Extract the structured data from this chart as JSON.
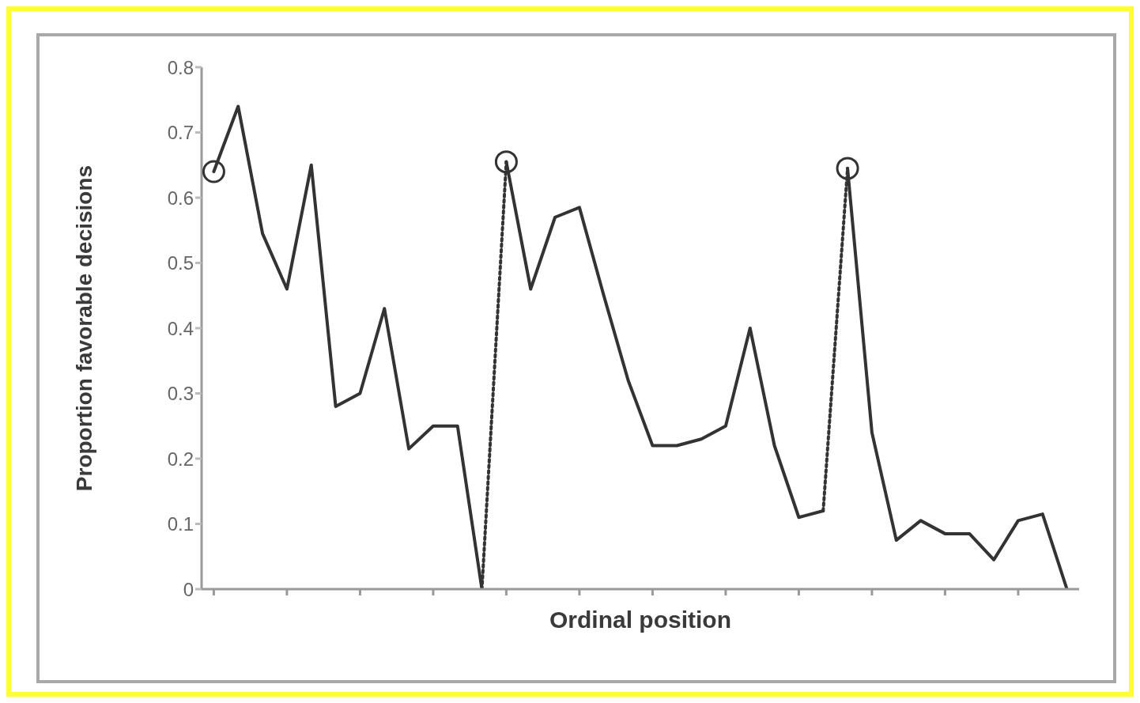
{
  "chart_data": {
    "type": "line",
    "xlabel": "Ordinal position",
    "ylabel": "Proportion favorable decisions",
    "categories": [
      null,
      null,
      null,
      null,
      null,
      null,
      null,
      null,
      null,
      null,
      null,
      null,
      null,
      null,
      null,
      null,
      null,
      null,
      null,
      null,
      null,
      null,
      null,
      null,
      null,
      null,
      null,
      null,
      null,
      null,
      null,
      null,
      null,
      null,
      null,
      null
    ],
    "ylim": [
      0,
      0.8
    ],
    "yticks": [
      0,
      0.1,
      0.2,
      0.3,
      0.4,
      0.5,
      0.6,
      0.7,
      0.8
    ],
    "grid": false,
    "marker": "none",
    "line_style": "solid",
    "series": [
      {
        "color": "#333333",
        "values": [
          0.64,
          0.74,
          0.545,
          0.46,
          0.65,
          0.28,
          0.3,
          0.43,
          0.215,
          0.25,
          0.25,
          0,
          null,
          null,
          null,
          null,
          null,
          null,
          null,
          null,
          null,
          null,
          null,
          null,
          null,
          null,
          0.645,
          0.24,
          0.075,
          0.105,
          0.085,
          0.085,
          0.045,
          0.105,
          0.115,
          0
        ]
      },
      {
        "color": "#333333",
        "values": [
          null,
          null,
          null,
          null,
          null,
          null,
          null,
          null,
          null,
          null,
          null,
          null,
          0.655,
          0.46,
          0.57,
          0.585,
          0.45,
          0.32,
          0.22,
          0.22,
          0.23,
          0.25,
          0.4,
          0.22,
          0.11,
          0.12,
          null,
          null,
          null,
          null,
          null,
          null,
          null,
          null,
          null,
          null
        ]
      },
      {
        "color": "#333333",
        "line_style": "dotted",
        "values": [
          null,
          null,
          null,
          null,
          null,
          null,
          null,
          null,
          null,
          null,
          null,
          0,
          0.655,
          null,
          null,
          null,
          null,
          null,
          null,
          null,
          null,
          null,
          null,
          null,
          null,
          0.12,
          0.645,
          null,
          null,
          null,
          null,
          null,
          null,
          null,
          null,
          null
        ]
      },
      {
        "type": "scatter",
        "marker": "circle",
        "color": "#333333",
        "values": [
          0.64,
          null,
          null,
          null,
          null,
          null,
          null,
          null,
          null,
          null,
          null,
          null,
          0.655,
          null,
          null,
          null,
          null,
          null,
          null,
          null,
          null,
          null,
          null,
          null,
          null,
          null,
          0.645,
          null,
          null,
          null,
          null,
          null,
          null,
          null,
          null,
          null
        ]
      }
    ]
  }
}
